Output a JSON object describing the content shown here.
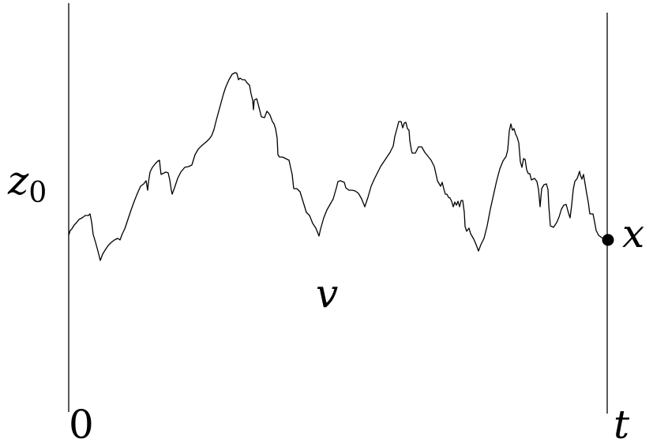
{
  "labels": {
    "start_level": "z",
    "start_level_subscript": "0",
    "end_point": "x",
    "region": "v",
    "time_start": "0",
    "time_end": "t"
  },
  "colors": {
    "ink": "#000000",
    "background": "#ffffff"
  }
}
